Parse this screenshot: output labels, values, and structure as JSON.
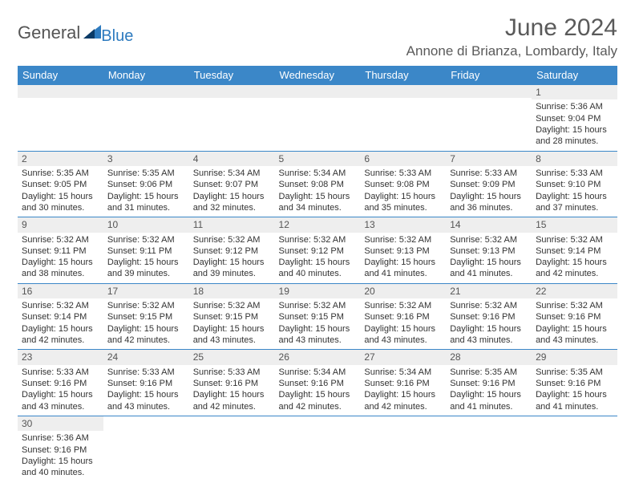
{
  "logo": {
    "general": "General",
    "blue": "Blue"
  },
  "title": "June 2024",
  "location": "Annone di Brianza, Lombardy, Italy",
  "colors": {
    "header_bg": "#3b87c8",
    "header_text": "#ffffff",
    "border": "#3b87c8",
    "daynum_bg": "#eeeeee",
    "text": "#333333",
    "title_text": "#5a5a5a",
    "logo_blue": "#2e7bbf"
  },
  "day_headers": [
    "Sunday",
    "Monday",
    "Tuesday",
    "Wednesday",
    "Thursday",
    "Friday",
    "Saturday"
  ],
  "weeks": [
    [
      null,
      null,
      null,
      null,
      null,
      null,
      {
        "n": "1",
        "sr": "5:36 AM",
        "ss": "9:04 PM",
        "dl": "15 hours and 28 minutes."
      }
    ],
    [
      {
        "n": "2",
        "sr": "5:35 AM",
        "ss": "9:05 PM",
        "dl": "15 hours and 30 minutes."
      },
      {
        "n": "3",
        "sr": "5:35 AM",
        "ss": "9:06 PM",
        "dl": "15 hours and 31 minutes."
      },
      {
        "n": "4",
        "sr": "5:34 AM",
        "ss": "9:07 PM",
        "dl": "15 hours and 32 minutes."
      },
      {
        "n": "5",
        "sr": "5:34 AM",
        "ss": "9:08 PM",
        "dl": "15 hours and 34 minutes."
      },
      {
        "n": "6",
        "sr": "5:33 AM",
        "ss": "9:08 PM",
        "dl": "15 hours and 35 minutes."
      },
      {
        "n": "7",
        "sr": "5:33 AM",
        "ss": "9:09 PM",
        "dl": "15 hours and 36 minutes."
      },
      {
        "n": "8",
        "sr": "5:33 AM",
        "ss": "9:10 PM",
        "dl": "15 hours and 37 minutes."
      }
    ],
    [
      {
        "n": "9",
        "sr": "5:32 AM",
        "ss": "9:11 PM",
        "dl": "15 hours and 38 minutes."
      },
      {
        "n": "10",
        "sr": "5:32 AM",
        "ss": "9:11 PM",
        "dl": "15 hours and 39 minutes."
      },
      {
        "n": "11",
        "sr": "5:32 AM",
        "ss": "9:12 PM",
        "dl": "15 hours and 39 minutes."
      },
      {
        "n": "12",
        "sr": "5:32 AM",
        "ss": "9:12 PM",
        "dl": "15 hours and 40 minutes."
      },
      {
        "n": "13",
        "sr": "5:32 AM",
        "ss": "9:13 PM",
        "dl": "15 hours and 41 minutes."
      },
      {
        "n": "14",
        "sr": "5:32 AM",
        "ss": "9:13 PM",
        "dl": "15 hours and 41 minutes."
      },
      {
        "n": "15",
        "sr": "5:32 AM",
        "ss": "9:14 PM",
        "dl": "15 hours and 42 minutes."
      }
    ],
    [
      {
        "n": "16",
        "sr": "5:32 AM",
        "ss": "9:14 PM",
        "dl": "15 hours and 42 minutes."
      },
      {
        "n": "17",
        "sr": "5:32 AM",
        "ss": "9:15 PM",
        "dl": "15 hours and 42 minutes."
      },
      {
        "n": "18",
        "sr": "5:32 AM",
        "ss": "9:15 PM",
        "dl": "15 hours and 43 minutes."
      },
      {
        "n": "19",
        "sr": "5:32 AM",
        "ss": "9:15 PM",
        "dl": "15 hours and 43 minutes."
      },
      {
        "n": "20",
        "sr": "5:32 AM",
        "ss": "9:16 PM",
        "dl": "15 hours and 43 minutes."
      },
      {
        "n": "21",
        "sr": "5:32 AM",
        "ss": "9:16 PM",
        "dl": "15 hours and 43 minutes."
      },
      {
        "n": "22",
        "sr": "5:32 AM",
        "ss": "9:16 PM",
        "dl": "15 hours and 43 minutes."
      }
    ],
    [
      {
        "n": "23",
        "sr": "5:33 AM",
        "ss": "9:16 PM",
        "dl": "15 hours and 43 minutes."
      },
      {
        "n": "24",
        "sr": "5:33 AM",
        "ss": "9:16 PM",
        "dl": "15 hours and 43 minutes."
      },
      {
        "n": "25",
        "sr": "5:33 AM",
        "ss": "9:16 PM",
        "dl": "15 hours and 42 minutes."
      },
      {
        "n": "26",
        "sr": "5:34 AM",
        "ss": "9:16 PM",
        "dl": "15 hours and 42 minutes."
      },
      {
        "n": "27",
        "sr": "5:34 AM",
        "ss": "9:16 PM",
        "dl": "15 hours and 42 minutes."
      },
      {
        "n": "28",
        "sr": "5:35 AM",
        "ss": "9:16 PM",
        "dl": "15 hours and 41 minutes."
      },
      {
        "n": "29",
        "sr": "5:35 AM",
        "ss": "9:16 PM",
        "dl": "15 hours and 41 minutes."
      }
    ],
    [
      {
        "n": "30",
        "sr": "5:36 AM",
        "ss": "9:16 PM",
        "dl": "15 hours and 40 minutes."
      },
      null,
      null,
      null,
      null,
      null,
      null
    ]
  ],
  "labels": {
    "sunrise": "Sunrise: ",
    "sunset": "Sunset: ",
    "daylight": "Daylight: "
  }
}
